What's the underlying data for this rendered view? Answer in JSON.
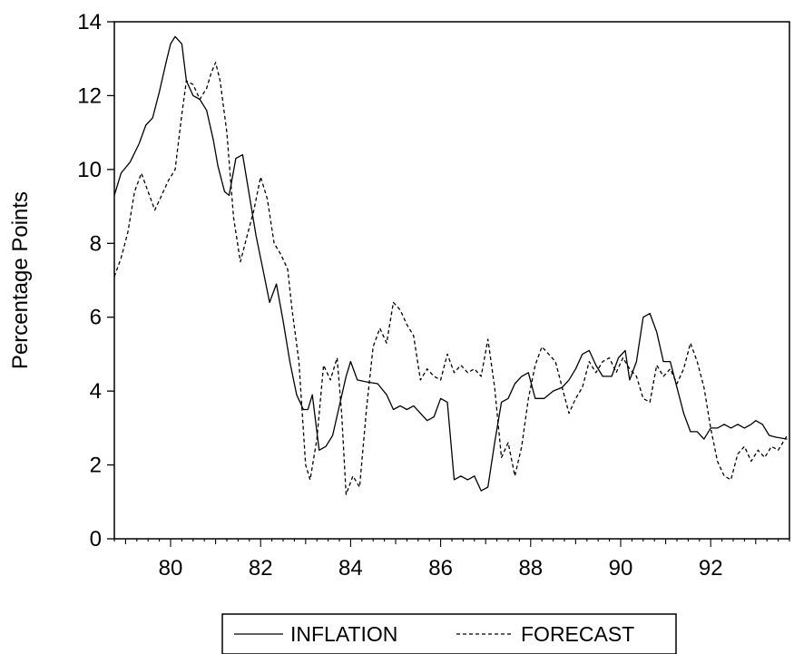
{
  "chart_data": {
    "type": "line",
    "title": "",
    "xlabel": "",
    "ylabel": "Percentage Points",
    "xlim": [
      1978.75,
      1993.75
    ],
    "ylim": [
      0,
      14
    ],
    "x_ticks": [
      80,
      82,
      84,
      86,
      88,
      90,
      92
    ],
    "y_ticks": [
      0,
      2,
      4,
      6,
      8,
      10,
      12,
      14
    ],
    "grid": false,
    "legend": "bottom-center",
    "series": [
      {
        "name": "INFLATION",
        "style": "solid",
        "color": "#000000",
        "points": [
          [
            1978.75,
            9.3
          ],
          [
            1978.9,
            9.9
          ],
          [
            1979.1,
            10.2
          ],
          [
            1979.3,
            10.7
          ],
          [
            1979.45,
            11.2
          ],
          [
            1979.6,
            11.4
          ],
          [
            1979.75,
            12.1
          ],
          [
            1979.9,
            12.9
          ],
          [
            1980.0,
            13.4
          ],
          [
            1980.1,
            13.6
          ],
          [
            1980.25,
            13.4
          ],
          [
            1980.35,
            12.4
          ],
          [
            1980.5,
            12.0
          ],
          [
            1980.65,
            11.9
          ],
          [
            1980.8,
            11.6
          ],
          [
            1980.95,
            10.8
          ],
          [
            1981.05,
            10.1
          ],
          [
            1981.2,
            9.4
          ],
          [
            1981.3,
            9.3
          ],
          [
            1981.45,
            10.3
          ],
          [
            1981.6,
            10.4
          ],
          [
            1981.75,
            9.3
          ],
          [
            1981.9,
            8.2
          ],
          [
            1982.05,
            7.3
          ],
          [
            1982.2,
            6.4
          ],
          [
            1982.35,
            6.9
          ],
          [
            1982.5,
            5.9
          ],
          [
            1982.65,
            4.8
          ],
          [
            1982.8,
            3.9
          ],
          [
            1982.95,
            3.5
          ],
          [
            1983.05,
            3.5
          ],
          [
            1983.15,
            3.9
          ],
          [
            1983.3,
            2.4
          ],
          [
            1983.45,
            2.5
          ],
          [
            1983.6,
            2.8
          ],
          [
            1983.75,
            3.6
          ],
          [
            1983.9,
            4.4
          ],
          [
            1984.0,
            4.8
          ],
          [
            1984.15,
            4.3
          ],
          [
            1984.35,
            4.25
          ],
          [
            1984.6,
            4.2
          ],
          [
            1984.8,
            3.9
          ],
          [
            1984.95,
            3.5
          ],
          [
            1985.1,
            3.6
          ],
          [
            1985.25,
            3.5
          ],
          [
            1985.4,
            3.6
          ],
          [
            1985.55,
            3.4
          ],
          [
            1985.7,
            3.2
          ],
          [
            1985.85,
            3.3
          ],
          [
            1986.0,
            3.8
          ],
          [
            1986.15,
            3.7
          ],
          [
            1986.3,
            1.6
          ],
          [
            1986.45,
            1.7
          ],
          [
            1986.6,
            1.6
          ],
          [
            1986.75,
            1.7
          ],
          [
            1986.9,
            1.3
          ],
          [
            1987.05,
            1.4
          ],
          [
            1987.2,
            2.6
          ],
          [
            1987.35,
            3.7
          ],
          [
            1987.5,
            3.8
          ],
          [
            1987.65,
            4.2
          ],
          [
            1987.8,
            4.4
          ],
          [
            1987.95,
            4.5
          ],
          [
            1988.1,
            3.8
          ],
          [
            1988.3,
            3.8
          ],
          [
            1988.5,
            4.0
          ],
          [
            1988.7,
            4.1
          ],
          [
            1988.85,
            4.3
          ],
          [
            1989.0,
            4.6
          ],
          [
            1989.15,
            5.0
          ],
          [
            1989.3,
            5.1
          ],
          [
            1989.45,
            4.7
          ],
          [
            1989.6,
            4.4
          ],
          [
            1989.8,
            4.4
          ],
          [
            1989.95,
            4.9
          ],
          [
            1990.1,
            5.1
          ],
          [
            1990.2,
            4.3
          ],
          [
            1990.35,
            4.8
          ],
          [
            1990.5,
            6.0
          ],
          [
            1990.65,
            6.1
          ],
          [
            1990.8,
            5.6
          ],
          [
            1990.95,
            4.8
          ],
          [
            1991.1,
            4.8
          ],
          [
            1991.25,
            4.1
          ],
          [
            1991.4,
            3.4
          ],
          [
            1991.55,
            2.9
          ],
          [
            1991.7,
            2.9
          ],
          [
            1991.85,
            2.7
          ],
          [
            1992.0,
            3.0
          ],
          [
            1992.15,
            3.0
          ],
          [
            1992.3,
            3.1
          ],
          [
            1992.45,
            3.0
          ],
          [
            1992.6,
            3.1
          ],
          [
            1992.75,
            3.0
          ],
          [
            1992.9,
            3.1
          ],
          [
            1993.0,
            3.2
          ],
          [
            1993.15,
            3.1
          ],
          [
            1993.3,
            2.8
          ],
          [
            1993.45,
            2.75
          ],
          [
            1993.7,
            2.7
          ]
        ]
      },
      {
        "name": "FORECAST",
        "style": "dashed",
        "color": "#000000",
        "points": [
          [
            1978.75,
            7.1
          ],
          [
            1978.9,
            7.6
          ],
          [
            1979.05,
            8.3
          ],
          [
            1979.2,
            9.4
          ],
          [
            1979.35,
            9.9
          ],
          [
            1979.5,
            9.4
          ],
          [
            1979.65,
            8.9
          ],
          [
            1979.8,
            9.3
          ],
          [
            1979.95,
            9.7
          ],
          [
            1980.1,
            10.0
          ],
          [
            1980.25,
            11.5
          ],
          [
            1980.35,
            12.4
          ],
          [
            1980.5,
            12.3
          ],
          [
            1980.65,
            11.9
          ],
          [
            1980.8,
            12.2
          ],
          [
            1980.9,
            12.6
          ],
          [
            1981.0,
            12.9
          ],
          [
            1981.1,
            12.4
          ],
          [
            1981.25,
            11.0
          ],
          [
            1981.4,
            8.7
          ],
          [
            1981.55,
            7.5
          ],
          [
            1981.7,
            8.2
          ],
          [
            1981.85,
            8.9
          ],
          [
            1982.0,
            9.8
          ],
          [
            1982.15,
            9.2
          ],
          [
            1982.3,
            8.0
          ],
          [
            1982.45,
            7.7
          ],
          [
            1982.6,
            7.3
          ],
          [
            1982.7,
            6.2
          ],
          [
            1982.85,
            4.8
          ],
          [
            1983.0,
            2.0
          ],
          [
            1983.1,
            1.6
          ],
          [
            1983.25,
            2.7
          ],
          [
            1983.4,
            4.7
          ],
          [
            1983.55,
            4.3
          ],
          [
            1983.7,
            4.9
          ],
          [
            1983.8,
            3.4
          ],
          [
            1983.9,
            1.2
          ],
          [
            1984.05,
            1.7
          ],
          [
            1984.2,
            1.4
          ],
          [
            1984.35,
            3.5
          ],
          [
            1984.5,
            5.2
          ],
          [
            1984.65,
            5.7
          ],
          [
            1984.8,
            5.3
          ],
          [
            1984.95,
            6.4
          ],
          [
            1985.1,
            6.2
          ],
          [
            1985.25,
            5.8
          ],
          [
            1985.4,
            5.5
          ],
          [
            1985.55,
            4.3
          ],
          [
            1985.7,
            4.6
          ],
          [
            1985.85,
            4.4
          ],
          [
            1986.0,
            4.3
          ],
          [
            1986.15,
            5.0
          ],
          [
            1986.3,
            4.5
          ],
          [
            1986.45,
            4.7
          ],
          [
            1986.6,
            4.5
          ],
          [
            1986.75,
            4.6
          ],
          [
            1986.9,
            4.4
          ],
          [
            1987.05,
            5.4
          ],
          [
            1987.2,
            4.1
          ],
          [
            1987.35,
            2.2
          ],
          [
            1987.5,
            2.6
          ],
          [
            1987.65,
            1.7
          ],
          [
            1987.8,
            2.5
          ],
          [
            1987.95,
            3.8
          ],
          [
            1988.1,
            4.7
          ],
          [
            1988.25,
            5.2
          ],
          [
            1988.4,
            5.0
          ],
          [
            1988.55,
            4.8
          ],
          [
            1988.7,
            4.1
          ],
          [
            1988.85,
            3.4
          ],
          [
            1989.0,
            3.8
          ],
          [
            1989.15,
            4.1
          ],
          [
            1989.3,
            4.8
          ],
          [
            1989.45,
            4.5
          ],
          [
            1989.6,
            4.8
          ],
          [
            1989.75,
            4.9
          ],
          [
            1989.9,
            4.5
          ],
          [
            1990.05,
            4.9
          ],
          [
            1990.2,
            4.6
          ],
          [
            1990.35,
            4.4
          ],
          [
            1990.5,
            3.8
          ],
          [
            1990.65,
            3.7
          ],
          [
            1990.8,
            4.7
          ],
          [
            1990.95,
            4.4
          ],
          [
            1991.1,
            4.6
          ],
          [
            1991.25,
            4.2
          ],
          [
            1991.4,
            4.6
          ],
          [
            1991.55,
            5.3
          ],
          [
            1991.7,
            4.8
          ],
          [
            1991.85,
            4.1
          ],
          [
            1992.0,
            3.0
          ],
          [
            1992.15,
            2.1
          ],
          [
            1992.3,
            1.7
          ],
          [
            1992.45,
            1.6
          ],
          [
            1992.6,
            2.3
          ],
          [
            1992.75,
            2.5
          ],
          [
            1992.9,
            2.1
          ],
          [
            1993.05,
            2.4
          ],
          [
            1993.2,
            2.2
          ],
          [
            1993.35,
            2.5
          ],
          [
            1993.5,
            2.4
          ],
          [
            1993.7,
            2.8
          ]
        ]
      }
    ]
  }
}
